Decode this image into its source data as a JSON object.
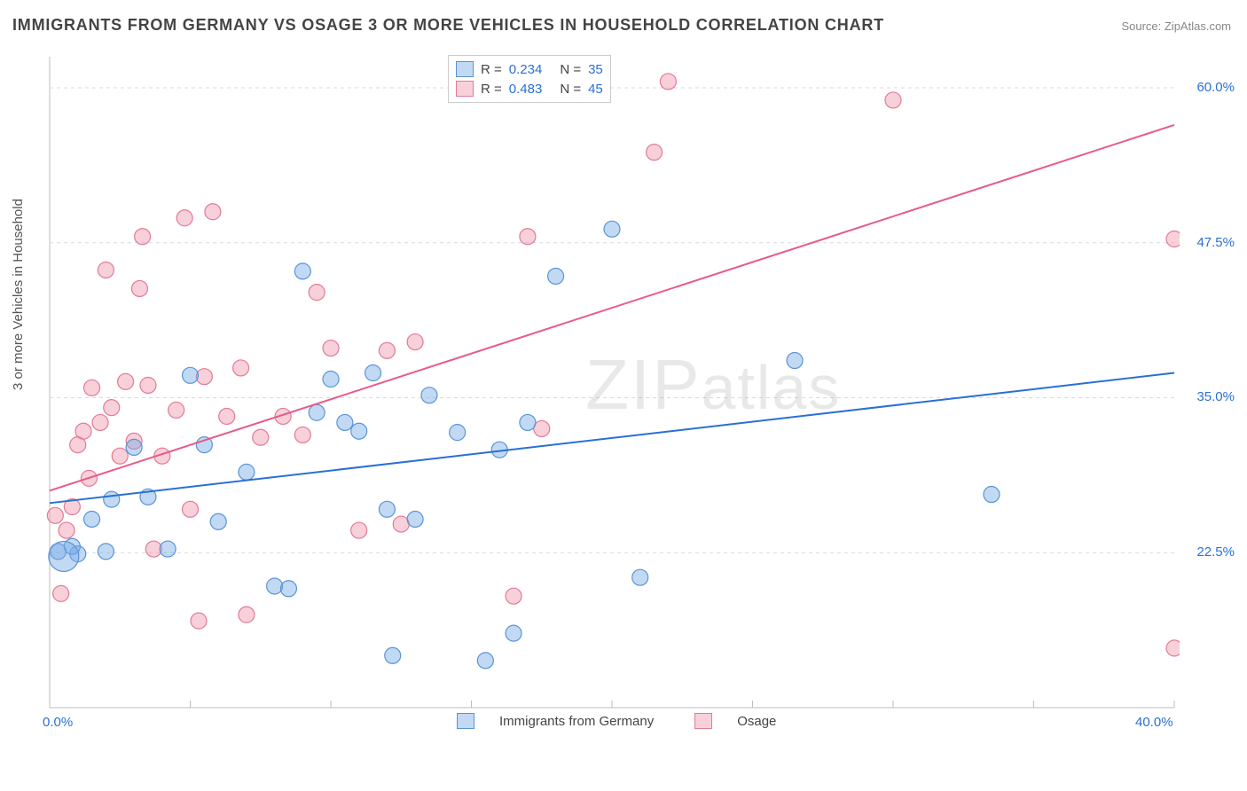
{
  "title": "IMMIGRANTS FROM GERMANY VS OSAGE 3 OR MORE VEHICLES IN HOUSEHOLD CORRELATION CHART",
  "source": "Source: ZipAtlas.com",
  "watermark": "ZIPatlas",
  "ylabel": "3 or more Vehicles in Household",
  "chart": {
    "type": "scatter",
    "plot_bg": "#ffffff",
    "grid_color": "#d9d9d9",
    "grid_dash": "4,4",
    "axis_color": "#bdbdbd",
    "xlim": [
      0,
      40
    ],
    "ylim": [
      10,
      62.5
    ],
    "x_ticks": [
      0,
      5,
      10,
      15,
      20,
      25,
      30,
      35,
      40
    ],
    "x_tick_labels": {
      "0": "0.0%",
      "40": "40.0%"
    },
    "y_gridlines": [
      22.5,
      35.0,
      47.5,
      60.0
    ],
    "y_tick_labels": {
      "22.5": "22.5%",
      "35.0": "35.0%",
      "47.5": "47.5%",
      "60.0": "60.0%"
    },
    "series": [
      {
        "name": "Immigrants from Germany",
        "marker_fill": "rgba(120,170,230,0.45)",
        "marker_stroke": "#5a94d6",
        "line_color": "#2a6fd6",
        "line_width": 2,
        "marker_radius": 9,
        "R": "0.234",
        "N": "35",
        "trend": {
          "x1": 0,
          "y1": 26.5,
          "x2": 40,
          "y2": 37.0
        },
        "points": [
          [
            0.3,
            22.6
          ],
          [
            1.0,
            22.4
          ],
          [
            0.8,
            23.0
          ],
          [
            1.5,
            25.2
          ],
          [
            2.0,
            22.6
          ],
          [
            2.2,
            26.8
          ],
          [
            3.0,
            31.0
          ],
          [
            3.5,
            27.0
          ],
          [
            4.2,
            22.8
          ],
          [
            5.0,
            36.8
          ],
          [
            5.5,
            31.2
          ],
          [
            6.0,
            25.0
          ],
          [
            7.0,
            29.0
          ],
          [
            8.0,
            19.8
          ],
          [
            8.5,
            19.6
          ],
          [
            9.0,
            45.2
          ],
          [
            9.5,
            33.8
          ],
          [
            10.0,
            36.5
          ],
          [
            10.5,
            33.0
          ],
          [
            11.0,
            32.3
          ],
          [
            11.5,
            37.0
          ],
          [
            12.0,
            26.0
          ],
          [
            12.2,
            14.2
          ],
          [
            13.0,
            25.2
          ],
          [
            13.5,
            35.2
          ],
          [
            14.5,
            32.2
          ],
          [
            16.0,
            30.8
          ],
          [
            17.0,
            33.0
          ],
          [
            18.0,
            44.8
          ],
          [
            20.0,
            48.6
          ],
          [
            21.0,
            20.5
          ],
          [
            16.5,
            16.0
          ],
          [
            26.5,
            38.0
          ],
          [
            33.5,
            27.2
          ],
          [
            15.5,
            13.8
          ]
        ],
        "large_marker": {
          "x": 0.5,
          "y": 22.2,
          "r": 17
        }
      },
      {
        "name": "Osage",
        "marker_fill": "rgba(240,150,170,0.45)",
        "marker_stroke": "#e37a96",
        "line_color": "#e85a88",
        "line_width": 2,
        "marker_radius": 9,
        "R": "0.483",
        "N": "45",
        "trend": {
          "x1": 0,
          "y1": 27.5,
          "x2": 40,
          "y2": 57.0
        },
        "points": [
          [
            0.2,
            25.5
          ],
          [
            0.4,
            19.2
          ],
          [
            0.6,
            24.3
          ],
          [
            0.8,
            26.2
          ],
          [
            1.0,
            31.2
          ],
          [
            1.2,
            32.3
          ],
          [
            1.4,
            28.5
          ],
          [
            1.5,
            35.8
          ],
          [
            1.8,
            33.0
          ],
          [
            2.0,
            45.3
          ],
          [
            2.2,
            34.2
          ],
          [
            2.5,
            30.3
          ],
          [
            2.7,
            36.3
          ],
          [
            3.0,
            31.5
          ],
          [
            3.3,
            48.0
          ],
          [
            3.5,
            36.0
          ],
          [
            3.7,
            22.8
          ],
          [
            4.0,
            30.3
          ],
          [
            4.5,
            34.0
          ],
          [
            5.0,
            26.0
          ],
          [
            5.3,
            17.0
          ],
          [
            5.5,
            36.7
          ],
          [
            5.8,
            50.0
          ],
          [
            6.3,
            33.5
          ],
          [
            6.8,
            37.4
          ],
          [
            7.0,
            17.5
          ],
          [
            7.5,
            31.8
          ],
          [
            8.3,
            33.5
          ],
          [
            9.0,
            32.0
          ],
          [
            9.5,
            43.5
          ],
          [
            10.0,
            39.0
          ],
          [
            11.0,
            24.3
          ],
          [
            12.0,
            38.8
          ],
          [
            12.5,
            24.8
          ],
          [
            13.0,
            39.5
          ],
          [
            16.5,
            19.0
          ],
          [
            17.5,
            32.5
          ],
          [
            17.0,
            48.0
          ],
          [
            21.5,
            54.8
          ],
          [
            22.0,
            60.5
          ],
          [
            30.0,
            59.0
          ],
          [
            40.0,
            47.8
          ],
          [
            40.0,
            14.8
          ],
          [
            4.8,
            49.5
          ],
          [
            3.2,
            43.8
          ]
        ]
      }
    ]
  },
  "xlegend": {
    "series1": "Immigrants from Germany",
    "series2": "Osage"
  }
}
